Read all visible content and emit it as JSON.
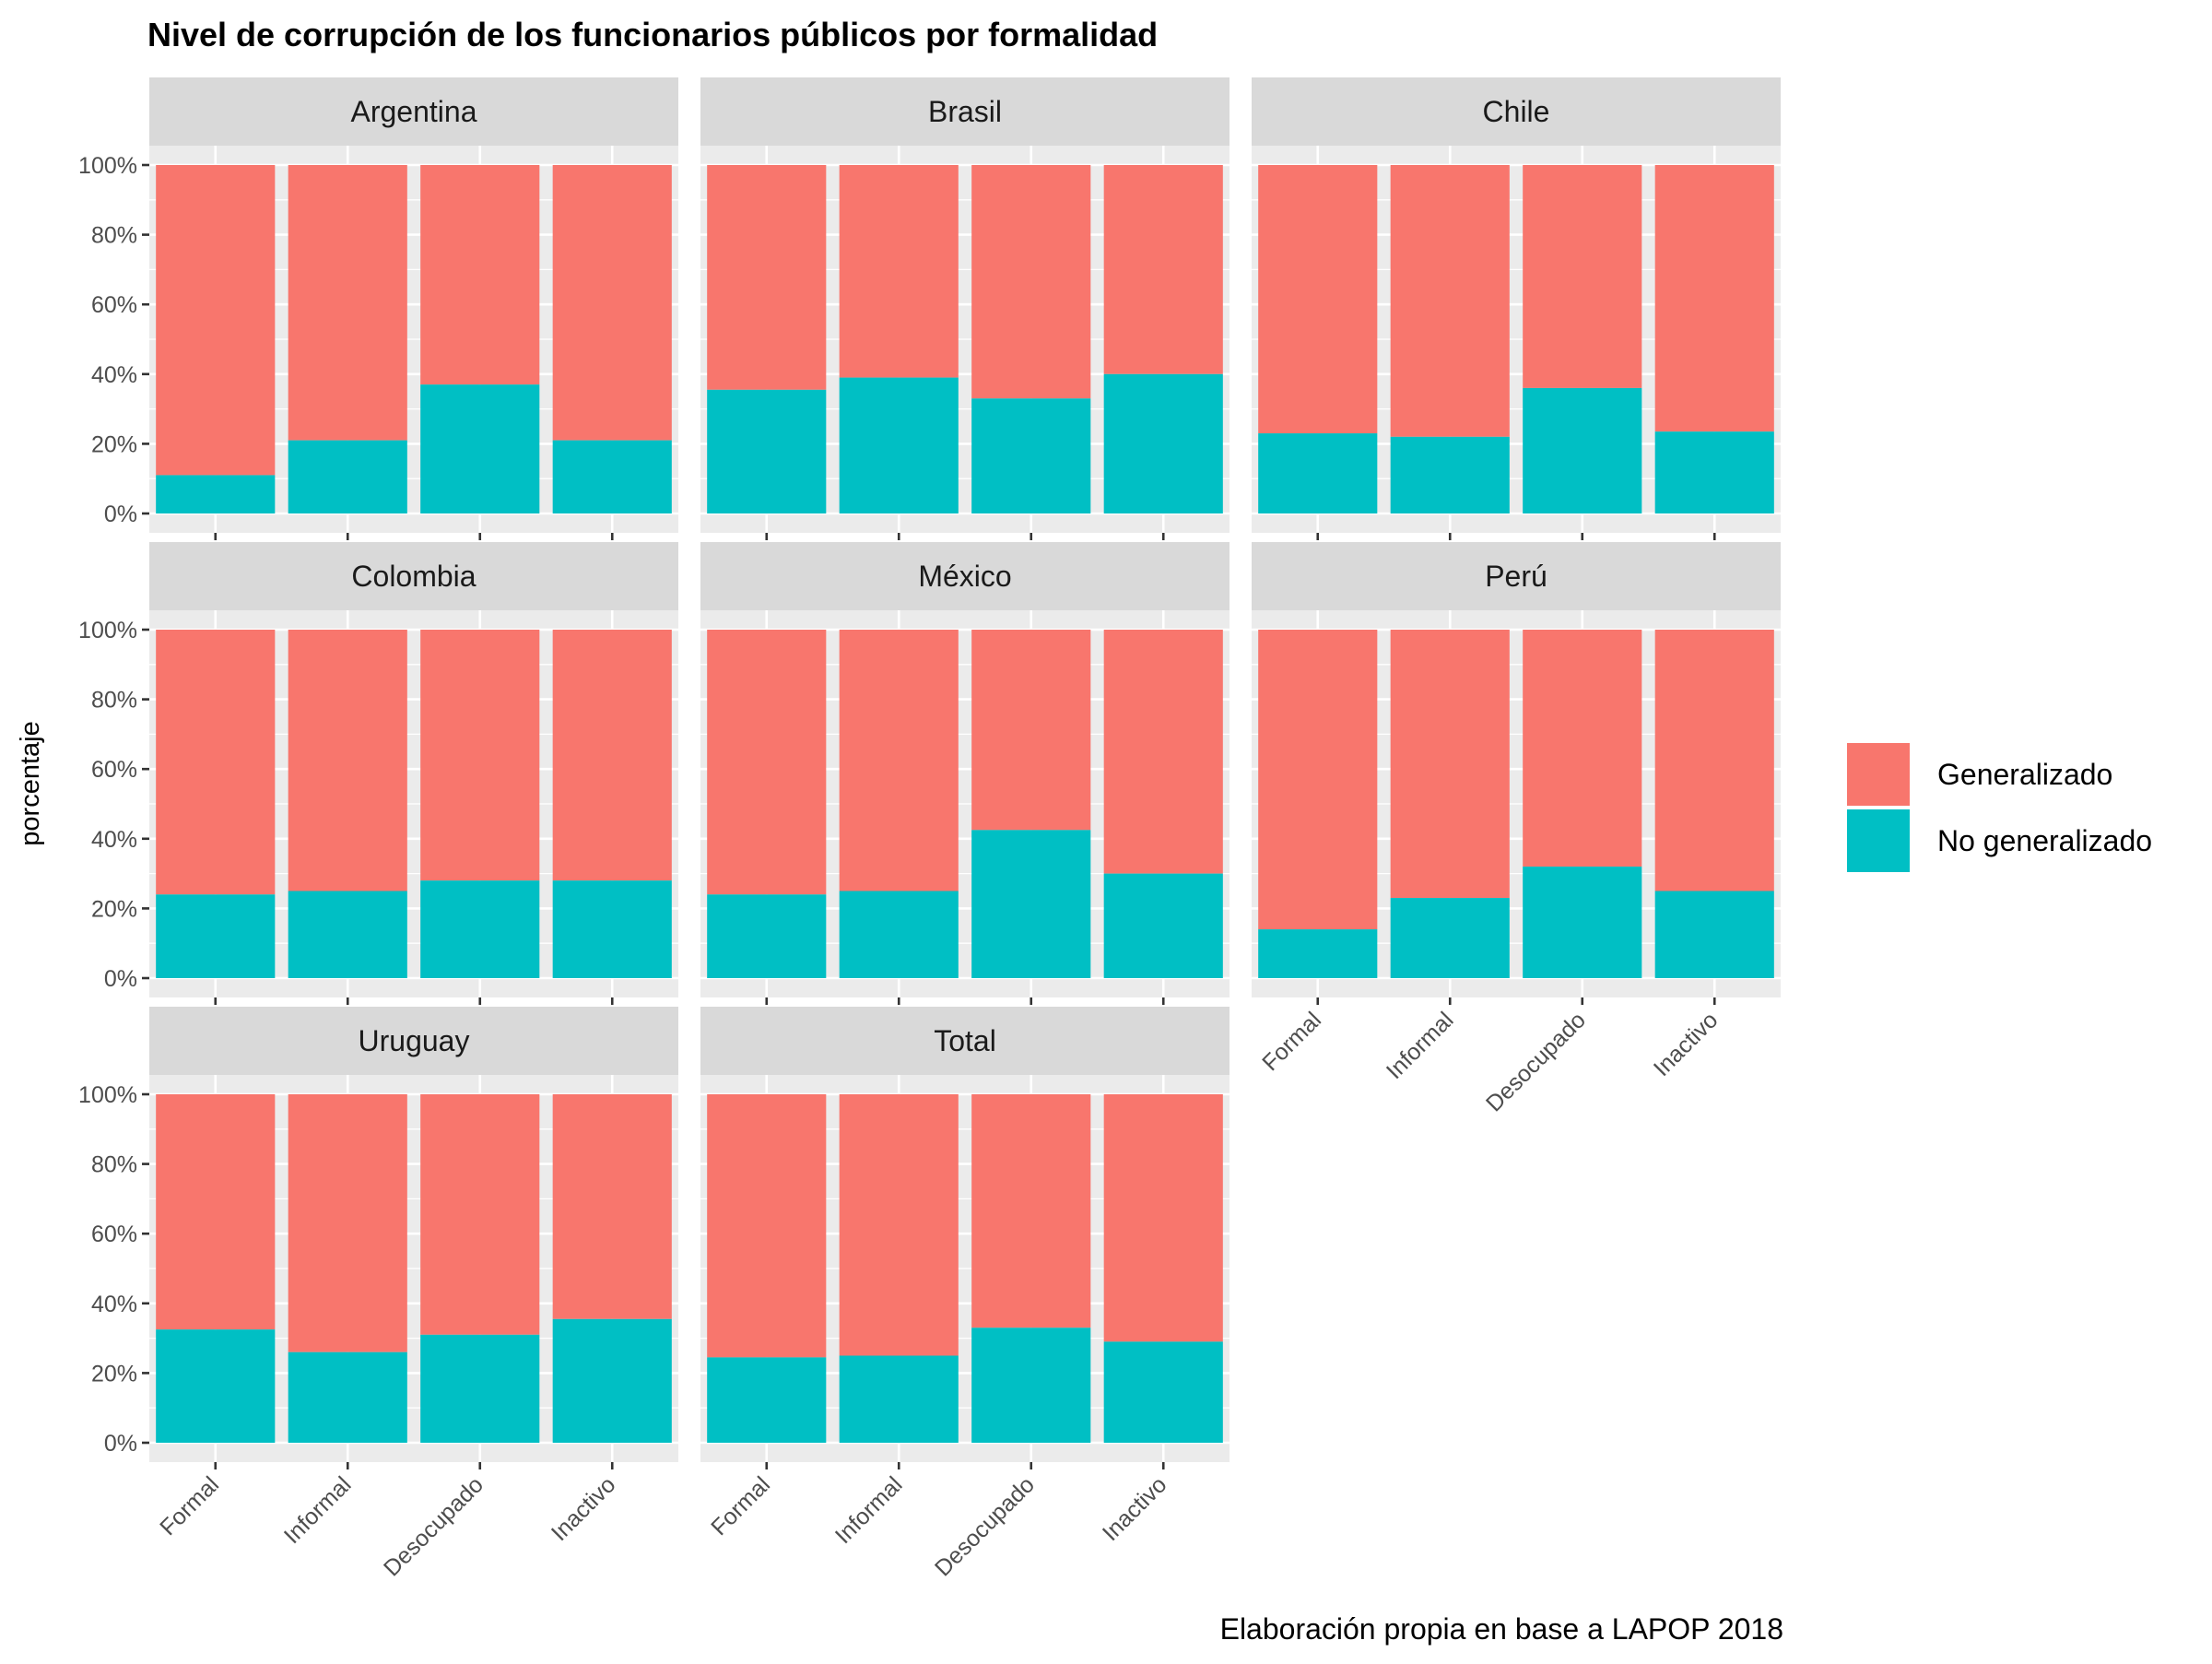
{
  "title": "Nivel de corrupción de los funcionarios públicos por formalidad",
  "caption": "Elaboración propia en base a LAPOP 2018",
  "ylabel": "porcentaje",
  "legend": {
    "position": "right",
    "items": [
      {
        "name": "Generalizado",
        "color": "#F8766D"
      },
      {
        "name": "No generalizado",
        "color": "#00BFC4"
      }
    ]
  },
  "chart_data": {
    "type": "bar",
    "stacked": true,
    "facet_layout": "3 columns, 3 rows",
    "categories": [
      "Formal",
      "Informal",
      "Desocupado",
      "Inactivo"
    ],
    "ylim": [
      0,
      100
    ],
    "yticks": [
      "0%",
      "20%",
      "40%",
      "60%",
      "80%",
      "100%"
    ],
    "grid": true,
    "series_names": [
      "Generalizado",
      "No generalizado"
    ],
    "panels": [
      {
        "name": "Argentina",
        "no_generalizado": [
          11,
          21,
          37,
          21
        ],
        "generalizado": [
          89,
          79,
          63,
          79
        ]
      },
      {
        "name": "Brasil",
        "no_generalizado": [
          35.5,
          39,
          33,
          40
        ],
        "generalizado": [
          64.5,
          61,
          67,
          60
        ]
      },
      {
        "name": "Chile",
        "no_generalizado": [
          23,
          22,
          36,
          23.5
        ],
        "generalizado": [
          77,
          78,
          64,
          76.5
        ]
      },
      {
        "name": "Colombia",
        "no_generalizado": [
          24,
          25,
          28,
          28
        ],
        "generalizado": [
          76,
          75,
          72,
          72
        ]
      },
      {
        "name": "México",
        "no_generalizado": [
          24,
          25,
          42.5,
          30
        ],
        "generalizado": [
          76,
          75,
          57.5,
          70
        ]
      },
      {
        "name": "Perú",
        "no_generalizado": [
          14,
          23,
          32,
          25
        ],
        "generalizado": [
          86,
          77,
          68,
          75
        ]
      },
      {
        "name": "Uruguay",
        "no_generalizado": [
          32.5,
          26,
          31,
          35.5
        ],
        "generalizado": [
          67.5,
          74,
          69,
          64.5
        ]
      },
      {
        "name": "Total",
        "no_generalizado": [
          24.5,
          25,
          33,
          29
        ],
        "generalizado": [
          75.5,
          75,
          67,
          71
        ]
      }
    ]
  }
}
